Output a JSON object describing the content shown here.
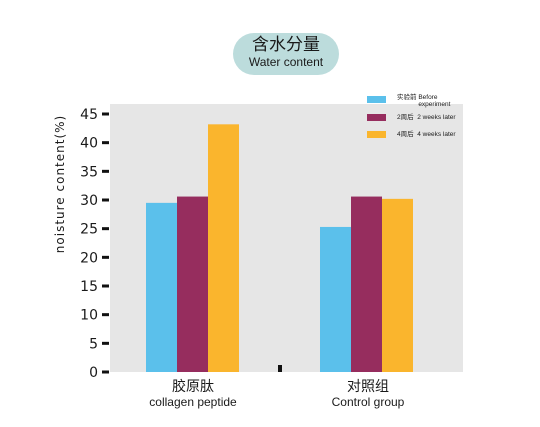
{
  "title": {
    "cn": "含水分量",
    "en": "Water content"
  },
  "chart_data": {
    "type": "bar",
    "title": "含水分量 Water content",
    "ylabel": "noisture content(%)",
    "xlabel": "",
    "ylim": [
      0,
      45
    ],
    "yticks": [
      "0",
      "5",
      "10",
      "15",
      "20",
      "25",
      "30",
      "35",
      "40",
      "45"
    ],
    "grid": false,
    "legend_position": "top-right",
    "categories": [
      {
        "cn": "胶原肽",
        "en": "collagen peptide"
      },
      {
        "cn": "对照组",
        "en": "Control group"
      }
    ],
    "series": [
      {
        "name_cn": "实验前",
        "name_en": "Before experiment",
        "color": "#5bc0eb",
        "values": [
          29.5,
          25.3
        ]
      },
      {
        "name_cn": "2周后",
        "name_en": "2 weeks later",
        "color": "#962d5e",
        "values": [
          30.6,
          30.6
        ]
      },
      {
        "name_cn": "4周后",
        "name_en": "4 weeks later",
        "color": "#fab52d",
        "values": [
          43.2,
          30.2
        ]
      }
    ]
  }
}
